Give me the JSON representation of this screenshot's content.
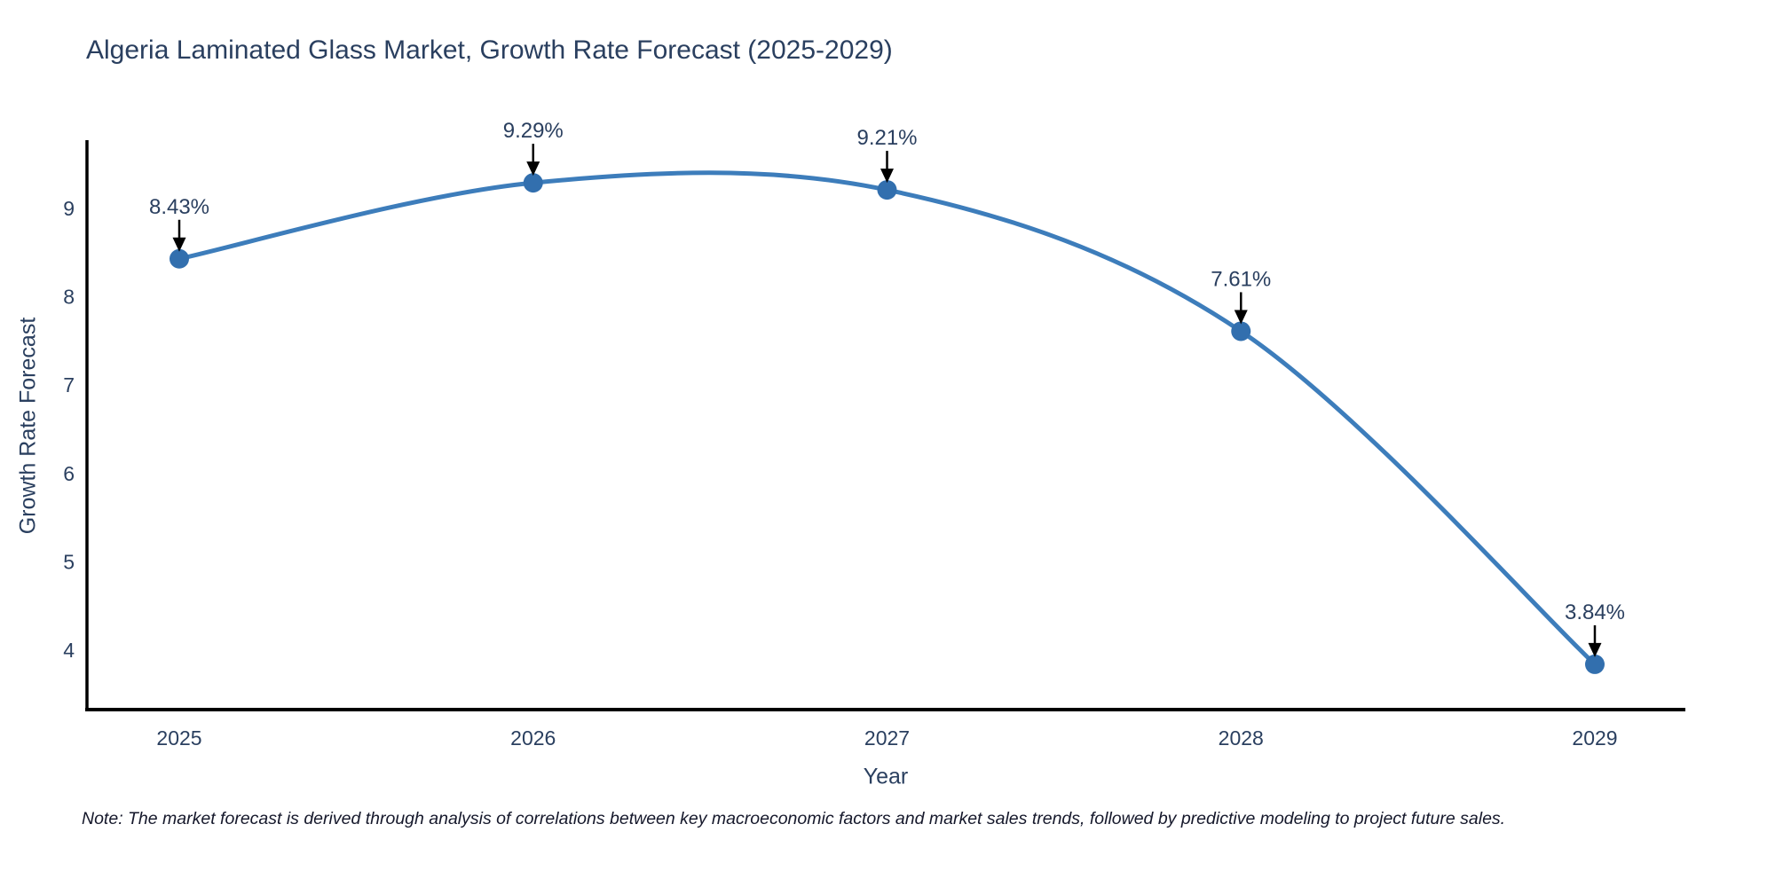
{
  "chart_data": {
    "type": "line",
    "title": "Algeria Laminated Glass Market, Growth Rate Forecast (2025-2029)",
    "xlabel": "Year",
    "ylabel": "Growth Rate Forecast",
    "categories": [
      "2025",
      "2026",
      "2027",
      "2028",
      "2029"
    ],
    "series": [
      {
        "name": "Growth Rate Forecast",
        "values": [
          8.43,
          9.29,
          9.21,
          7.61,
          3.84
        ],
        "labels": [
          "8.43%",
          "9.29%",
          "9.21%",
          "7.61%",
          "3.84%"
        ]
      }
    ],
    "yticks": [
      9,
      8,
      7,
      6,
      5,
      4
    ],
    "ylim": [
      3.35,
      9.75
    ],
    "grid": false,
    "legend": "none",
    "line_shape": "spline",
    "annotation_style": "down-arrow",
    "colors": {
      "line": "#3d7dbb",
      "marker": "#326fae",
      "axis": "#000000",
      "text": "#2a3f5f",
      "arrow": "#000000"
    }
  },
  "note": "Note: The market forecast is derived through analysis of correlations between key macroeconomic factors and market sales trends, followed by predictive modeling to project future sales."
}
